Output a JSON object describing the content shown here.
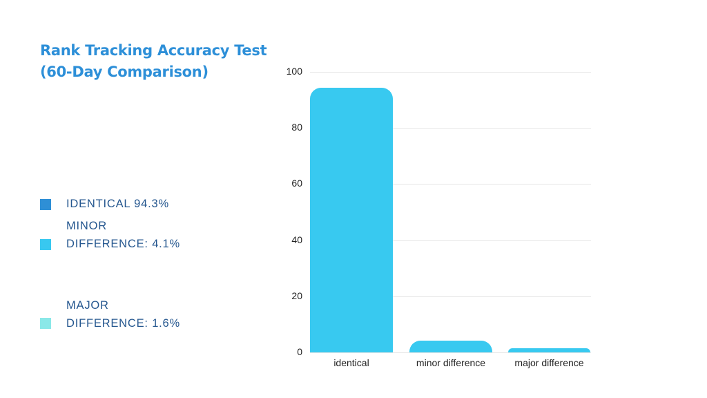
{
  "title": {
    "line1": "Rank Tracking Accuracy Test",
    "line2": "(60-Day Comparison)",
    "color": "#2d8fd8"
  },
  "legend": [
    {
      "text": "IDENTICAL 94.3%",
      "color": "#2e8fd6"
    },
    {
      "text": "MINOR\nDIFFERENCE: 4.1%",
      "color": "#38c8f0"
    },
    {
      "text": "MAJOR\nDIFFERENCE: 1.6%",
      "color": "#8ae8e8"
    }
  ],
  "chart_data": {
    "type": "bar",
    "title": "Rank Tracking Accuracy Test (60-Day Comparison)",
    "categories": [
      "identical",
      "minor difference",
      "major difference"
    ],
    "values": [
      94.3,
      4.1,
      1.6
    ],
    "xlabel": "",
    "ylabel": "",
    "ylim": [
      0,
      100
    ],
    "yticks": [
      0,
      20,
      40,
      60,
      80,
      100
    ],
    "grid": true,
    "bar_color": "#38c9f0",
    "legend_position": "left",
    "legend": [
      "IDENTICAL 94.3%",
      "MINOR DIFFERENCE: 4.1%",
      "MAJOR DIFFERENCE: 1.6%"
    ]
  }
}
